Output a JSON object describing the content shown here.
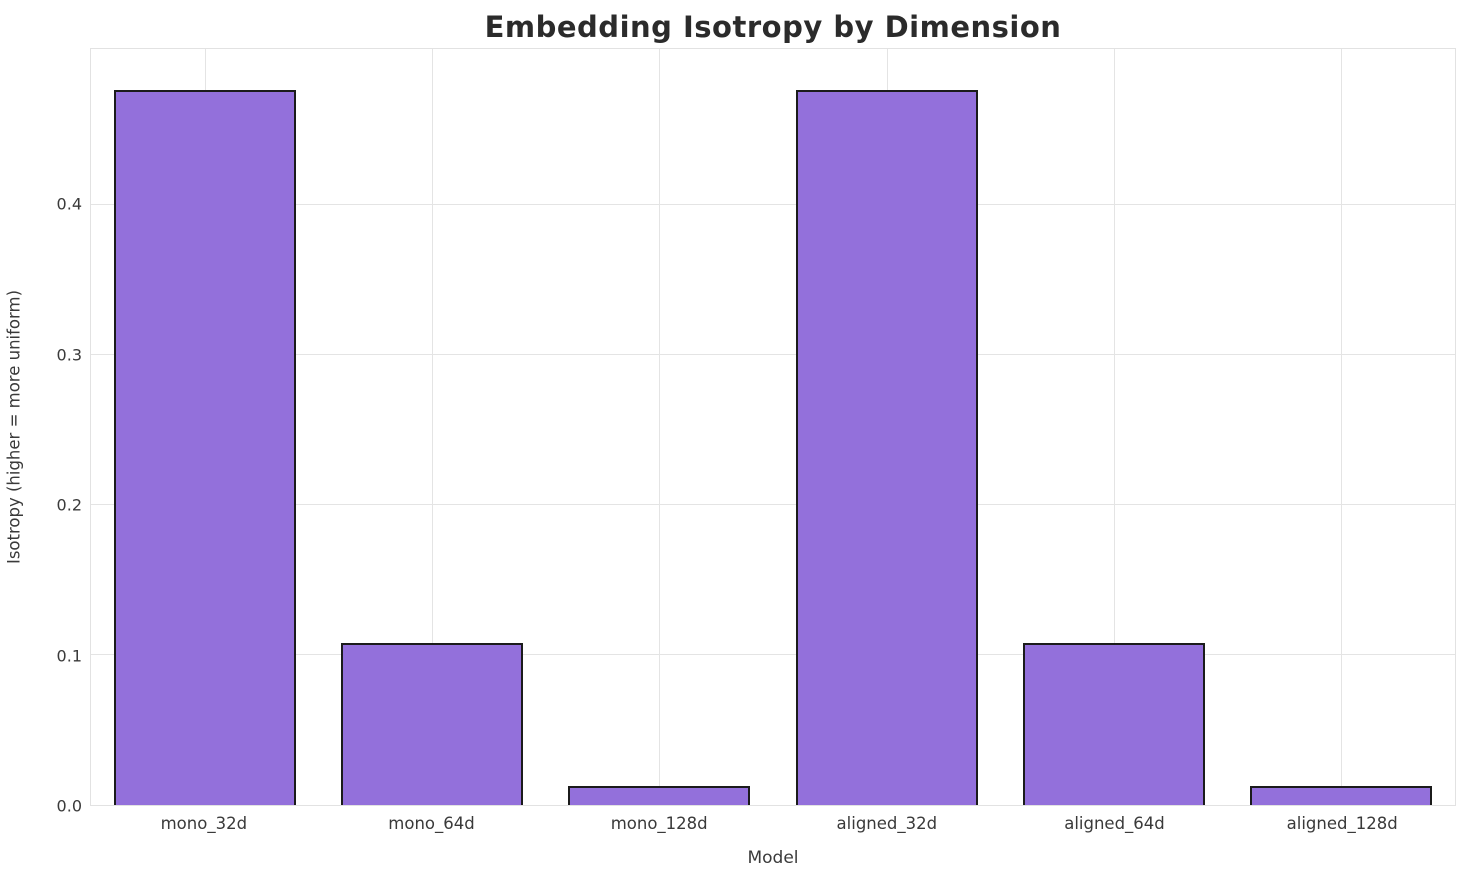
{
  "chart_data": {
    "type": "bar",
    "title": "Embedding Isotropy by Dimension",
    "xlabel": "Model",
    "ylabel": "Isotropy (higher = more uniform)",
    "categories": [
      "mono_32d",
      "mono_64d",
      "mono_128d",
      "aligned_32d",
      "aligned_64d",
      "aligned_128d"
    ],
    "values": [
      0.477,
      0.108,
      0.013,
      0.477,
      0.108,
      0.013
    ],
    "ylim": [
      0,
      0.504
    ],
    "yticks": [
      0.0,
      0.1,
      0.2,
      0.3,
      0.4
    ],
    "ytick_format_decimals": 1,
    "grid": true,
    "legend_position": "none",
    "bar_color": "#9370DB",
    "bar_edge_color": "#1b1b1b",
    "grid_color": "#e4e4e4",
    "background_color": "#ffffff",
    "bar_width_fraction": 0.8
  }
}
